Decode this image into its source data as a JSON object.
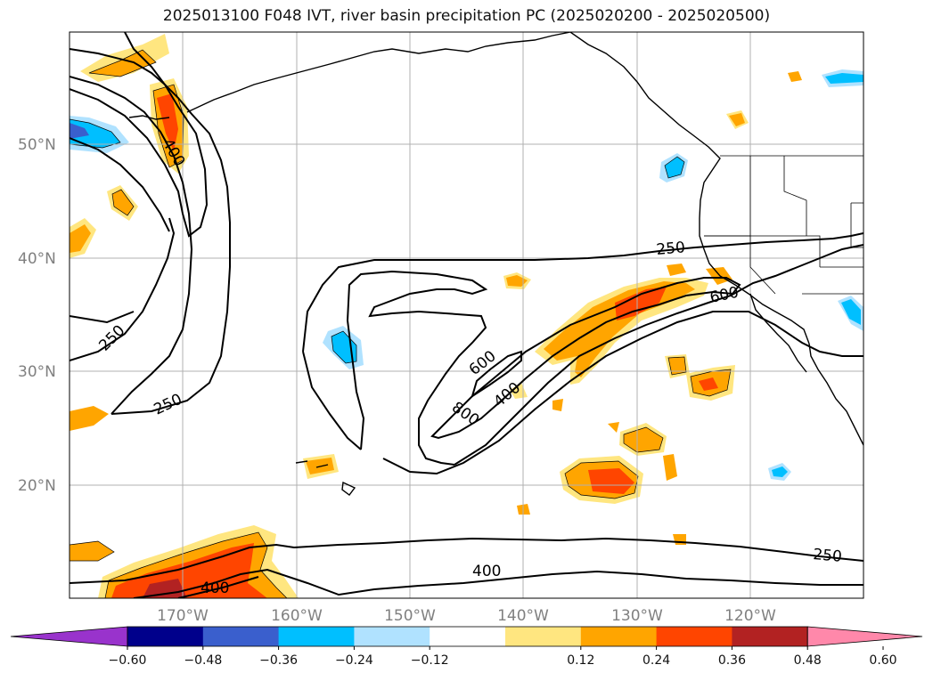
{
  "title": "2025013100 F048 IVT, river basin precipitation PC (2025020200 - 2025020500)",
  "lat_ticks": [
    "50°N",
    "40°N",
    "30°N",
    "20°N"
  ],
  "lon_ticks": [
    "170°W",
    "160°W",
    "150°W",
    "140°W",
    "130°W",
    "120°W"
  ],
  "contour_labels": [
    "400",
    "250",
    "250",
    "250",
    "600",
    "800",
    "400",
    "600",
    "250",
    "400",
    "400"
  ],
  "colorbar": {
    "tick_labels": [
      "−0.60",
      "−0.48",
      "−0.36",
      "−0.24",
      "−0.12",
      "0.12",
      "0.24",
      "0.36",
      "0.48",
      "0.60"
    ],
    "colors": [
      "#9933cc",
      "#00008b",
      "#3a5fcd",
      "#00bfff",
      "#b0e2ff",
      "#ffffff",
      "#ffe680",
      "#ffa500",
      "#ff4500",
      "#b22222",
      "#ff88aa"
    ]
  }
}
